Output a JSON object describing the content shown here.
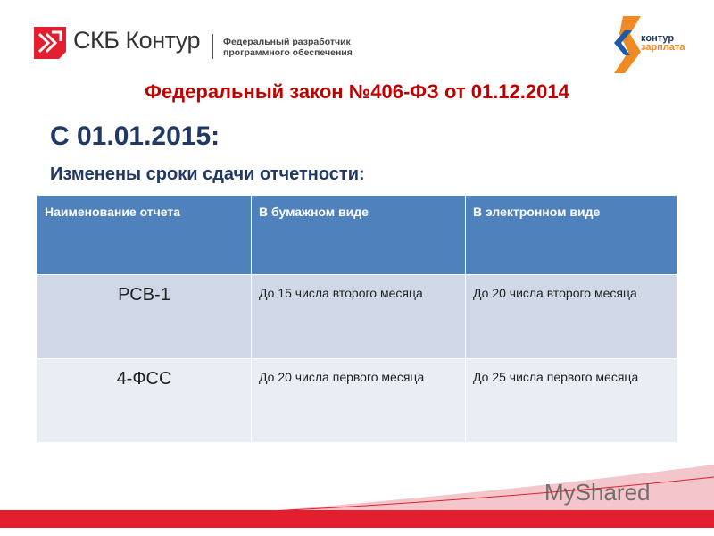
{
  "header": {
    "brand": "СКБ Контур",
    "tagline_line1": "Федеральный разработчик",
    "tagline_line2": "программного обеспечения",
    "logo2_line1": "контур",
    "logo2_line2": "зарплата"
  },
  "title": "Федеральный закон №406-ФЗ от 01.12.2014",
  "date_heading": "С 01.01.2015:",
  "subheading": "Изменены сроки сдачи отчетности:",
  "table": {
    "headers": [
      "Наименование отчета",
      "В бумажном виде",
      "В электронном виде"
    ],
    "rows": [
      [
        "РСВ-1",
        "До 15 числа второго месяца",
        "До 20 числа второго месяца"
      ],
      [
        "4-ФСС",
        "До 20 числа первого месяца",
        "До 25 числа первого месяца"
      ]
    ]
  },
  "watermark": "MyShared",
  "colors": {
    "accent_red": "#e31e2f",
    "title_red": "#c00000",
    "header_blue": "#4f81bd",
    "heading_navy": "#1f3864"
  }
}
